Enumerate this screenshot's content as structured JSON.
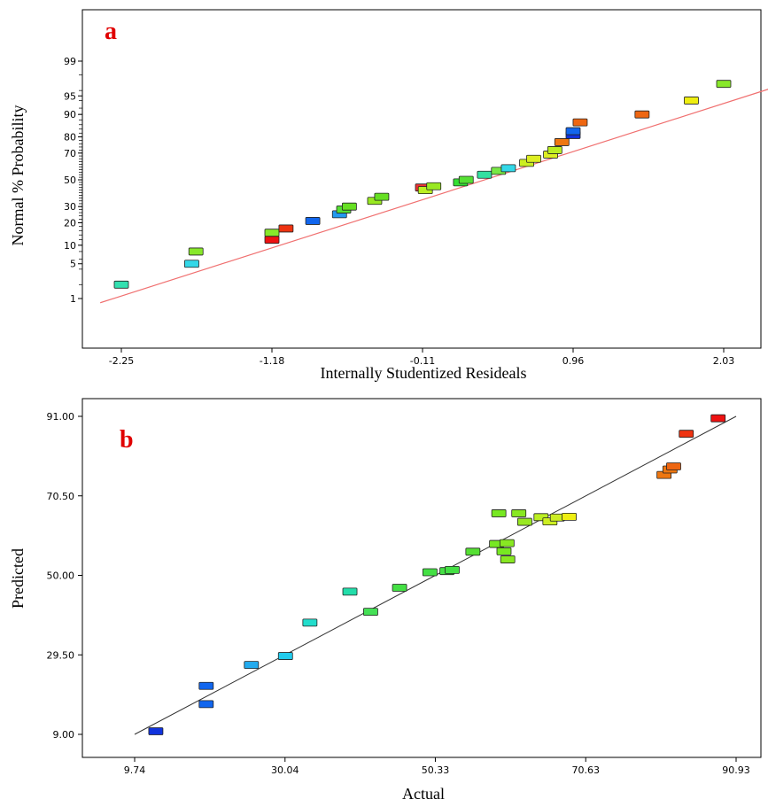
{
  "chart_data": [
    {
      "panel_label": "a",
      "type": "scatter",
      "xlabel": "Internally Studentized Resideals",
      "ylabel": "Normal % Probability",
      "x_ticks": [
        "-2.25",
        "-1.18",
        "-0.11",
        "0.96",
        "2.03"
      ],
      "x_tick_values": [
        -2.25,
        -1.18,
        -0.11,
        0.96,
        2.03
      ],
      "y_ticks": [
        "1",
        "5",
        "10",
        "20",
        "30",
        "50",
        "70",
        "80",
        "90",
        "95",
        "99"
      ],
      "y_tick_values": [
        1,
        5,
        10,
        20,
        30,
        50,
        70,
        80,
        90,
        95,
        99
      ],
      "xlim": [
        -2.4,
        2.5
      ],
      "y_scale": "normal probability",
      "reference_line": {
        "x": [
          -2.4,
          2.5
        ],
        "y": [
          0.8,
          97.2
        ],
        "color": "#f07070"
      },
      "points": [
        {
          "x": -2.25,
          "y": 2,
          "color": "#33e0b0"
        },
        {
          "x": -1.75,
          "y": 5,
          "color": "#33d8e8"
        },
        {
          "x": -1.72,
          "y": 8,
          "color": "#88e82a"
        },
        {
          "x": -1.18,
          "y": 12,
          "color": "#ee1111"
        },
        {
          "x": -1.18,
          "y": 15,
          "color": "#88e82a"
        },
        {
          "x": -1.08,
          "y": 17,
          "color": "#ee3311"
        },
        {
          "x": -0.89,
          "y": 21,
          "color": "#1166ee"
        },
        {
          "x": -0.7,
          "y": 25,
          "color": "#2299ee"
        },
        {
          "x": -0.67,
          "y": 28,
          "color": "#55e033"
        },
        {
          "x": -0.63,
          "y": 30,
          "color": "#66e022"
        },
        {
          "x": -0.45,
          "y": 34,
          "color": "#99e822"
        },
        {
          "x": -0.4,
          "y": 37,
          "color": "#66e022"
        },
        {
          "x": -0.11,
          "y": 44,
          "color": "#ee3333"
        },
        {
          "x": -0.09,
          "y": 42,
          "color": "#bbee22"
        },
        {
          "x": -0.03,
          "y": 45,
          "color": "#99e822"
        },
        {
          "x": 0.16,
          "y": 48,
          "color": "#33e033"
        },
        {
          "x": 0.2,
          "y": 50,
          "color": "#55e033"
        },
        {
          "x": 0.33,
          "y": 54,
          "color": "#33e0a0"
        },
        {
          "x": 0.43,
          "y": 57,
          "color": "#77e844"
        },
        {
          "x": 0.5,
          "y": 59,
          "color": "#33d8e8"
        },
        {
          "x": 0.63,
          "y": 63,
          "color": "#ccee22"
        },
        {
          "x": 0.68,
          "y": 66,
          "color": "#ddee22"
        },
        {
          "x": 0.8,
          "y": 69,
          "color": "#ddee22"
        },
        {
          "x": 0.83,
          "y": 72,
          "color": "#bbee22"
        },
        {
          "x": 0.88,
          "y": 77,
          "color": "#ee7711"
        },
        {
          "x": 0.96,
          "y": 81,
          "color": "#1133dd"
        },
        {
          "x": 0.96,
          "y": 83,
          "color": "#1166ee"
        },
        {
          "x": 1.01,
          "y": 87,
          "color": "#ee6611"
        },
        {
          "x": 1.45,
          "y": 90,
          "color": "#ee6611"
        },
        {
          "x": 1.8,
          "y": 94,
          "color": "#eeee11"
        },
        {
          "x": 2.03,
          "y": 97,
          "color": "#88e82a"
        }
      ]
    },
    {
      "panel_label": "b",
      "type": "scatter",
      "xlabel": "Actual",
      "ylabel": "Predicted",
      "x_ticks": [
        "9.74",
        "30.04",
        "50.33",
        "70.63",
        "90.93"
      ],
      "x_tick_values": [
        9.74,
        30.04,
        50.33,
        70.63,
        90.93
      ],
      "y_ticks": [
        "9.00",
        "29.50",
        "50.00",
        "70.50",
        "91.00"
      ],
      "y_tick_values": [
        9.0,
        29.5,
        50.0,
        70.5,
        91.0
      ],
      "xlim": [
        9.74,
        90.93
      ],
      "ylim": [
        9.0,
        91.0
      ],
      "reference_line": {
        "x": [
          9.74,
          90.93
        ],
        "y": [
          9.0,
          91.0
        ],
        "color": "#333333"
      },
      "points": [
        {
          "x": 12.6,
          "y": 9.8,
          "color": "#1133dd"
        },
        {
          "x": 19.4,
          "y": 16.8,
          "color": "#1166ee"
        },
        {
          "x": 19.4,
          "y": 21.5,
          "color": "#1166ee"
        },
        {
          "x": 25.5,
          "y": 26.9,
          "color": "#22aaee"
        },
        {
          "x": 30.1,
          "y": 29.2,
          "color": "#22ccee"
        },
        {
          "x": 33.4,
          "y": 37.8,
          "color": "#22ddcc"
        },
        {
          "x": 38.8,
          "y": 45.8,
          "color": "#22ddaa"
        },
        {
          "x": 41.6,
          "y": 40.6,
          "color": "#44e055"
        },
        {
          "x": 45.5,
          "y": 46.8,
          "color": "#44e044"
        },
        {
          "x": 49.6,
          "y": 50.8,
          "color": "#44e044"
        },
        {
          "x": 51.9,
          "y": 51.1,
          "color": "#44e044"
        },
        {
          "x": 52.6,
          "y": 51.4,
          "color": "#44e044"
        },
        {
          "x": 55.4,
          "y": 56.1,
          "color": "#55e033"
        },
        {
          "x": 58.6,
          "y": 58.1,
          "color": "#77e822"
        },
        {
          "x": 58.9,
          "y": 66.0,
          "color": "#77e822"
        },
        {
          "x": 59.6,
          "y": 56.2,
          "color": "#77e822"
        },
        {
          "x": 60.1,
          "y": 54.1,
          "color": "#88e822"
        },
        {
          "x": 60.0,
          "y": 58.3,
          "color": "#88e822"
        },
        {
          "x": 61.6,
          "y": 66.0,
          "color": "#88e822"
        },
        {
          "x": 62.4,
          "y": 63.8,
          "color": "#99e822"
        },
        {
          "x": 64.6,
          "y": 65.0,
          "color": "#bbee22"
        },
        {
          "x": 65.8,
          "y": 63.9,
          "color": "#ccee22"
        },
        {
          "x": 66.8,
          "y": 64.9,
          "color": "#ccee22"
        },
        {
          "x": 68.4,
          "y": 65.1,
          "color": "#eeee11"
        },
        {
          "x": 81.2,
          "y": 75.9,
          "color": "#ee7711"
        },
        {
          "x": 82.0,
          "y": 77.3,
          "color": "#ee7711"
        },
        {
          "x": 82.5,
          "y": 78.1,
          "color": "#ee6611"
        },
        {
          "x": 84.2,
          "y": 86.5,
          "color": "#ee3311"
        },
        {
          "x": 88.5,
          "y": 90.5,
          "color": "#ee1111"
        }
      ]
    }
  ]
}
